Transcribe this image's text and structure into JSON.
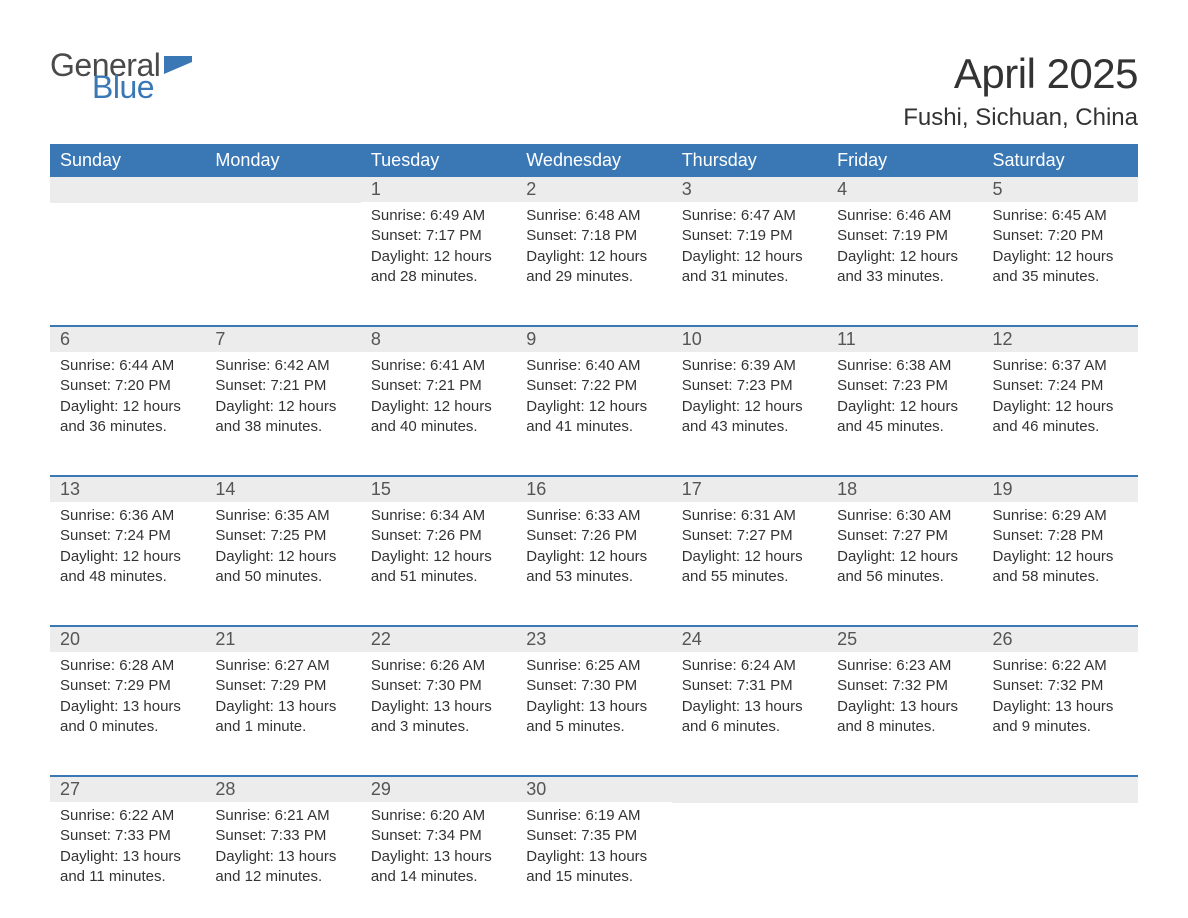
{
  "logo": {
    "text_general": "General",
    "text_blue": "Blue"
  },
  "title": {
    "month": "April 2025",
    "location": "Fushi, Sichuan, China"
  },
  "colors": {
    "header_bg": "#3a78b5",
    "header_text": "#ffffff",
    "daynum_bg": "#ececec",
    "week_border": "#3a78b5",
    "body_text": "#333333",
    "logo_gray": "#4a4a4a",
    "logo_blue": "#3a78b5",
    "page_bg": "#ffffff"
  },
  "weekdays": [
    "Sunday",
    "Monday",
    "Tuesday",
    "Wednesday",
    "Thursday",
    "Friday",
    "Saturday"
  ],
  "weeks": [
    [
      {
        "n": "",
        "sunrise": "",
        "sunset": "",
        "daylight": ""
      },
      {
        "n": "",
        "sunrise": "",
        "sunset": "",
        "daylight": ""
      },
      {
        "n": "1",
        "sunrise": "Sunrise: 6:49 AM",
        "sunset": "Sunset: 7:17 PM",
        "daylight": "Daylight: 12 hours and 28 minutes."
      },
      {
        "n": "2",
        "sunrise": "Sunrise: 6:48 AM",
        "sunset": "Sunset: 7:18 PM",
        "daylight": "Daylight: 12 hours and 29 minutes."
      },
      {
        "n": "3",
        "sunrise": "Sunrise: 6:47 AM",
        "sunset": "Sunset: 7:19 PM",
        "daylight": "Daylight: 12 hours and 31 minutes."
      },
      {
        "n": "4",
        "sunrise": "Sunrise: 6:46 AM",
        "sunset": "Sunset: 7:19 PM",
        "daylight": "Daylight: 12 hours and 33 minutes."
      },
      {
        "n": "5",
        "sunrise": "Sunrise: 6:45 AM",
        "sunset": "Sunset: 7:20 PM",
        "daylight": "Daylight: 12 hours and 35 minutes."
      }
    ],
    [
      {
        "n": "6",
        "sunrise": "Sunrise: 6:44 AM",
        "sunset": "Sunset: 7:20 PM",
        "daylight": "Daylight: 12 hours and 36 minutes."
      },
      {
        "n": "7",
        "sunrise": "Sunrise: 6:42 AM",
        "sunset": "Sunset: 7:21 PM",
        "daylight": "Daylight: 12 hours and 38 minutes."
      },
      {
        "n": "8",
        "sunrise": "Sunrise: 6:41 AM",
        "sunset": "Sunset: 7:21 PM",
        "daylight": "Daylight: 12 hours and 40 minutes."
      },
      {
        "n": "9",
        "sunrise": "Sunrise: 6:40 AM",
        "sunset": "Sunset: 7:22 PM",
        "daylight": "Daylight: 12 hours and 41 minutes."
      },
      {
        "n": "10",
        "sunrise": "Sunrise: 6:39 AM",
        "sunset": "Sunset: 7:23 PM",
        "daylight": "Daylight: 12 hours and 43 minutes."
      },
      {
        "n": "11",
        "sunrise": "Sunrise: 6:38 AM",
        "sunset": "Sunset: 7:23 PM",
        "daylight": "Daylight: 12 hours and 45 minutes."
      },
      {
        "n": "12",
        "sunrise": "Sunrise: 6:37 AM",
        "sunset": "Sunset: 7:24 PM",
        "daylight": "Daylight: 12 hours and 46 minutes."
      }
    ],
    [
      {
        "n": "13",
        "sunrise": "Sunrise: 6:36 AM",
        "sunset": "Sunset: 7:24 PM",
        "daylight": "Daylight: 12 hours and 48 minutes."
      },
      {
        "n": "14",
        "sunrise": "Sunrise: 6:35 AM",
        "sunset": "Sunset: 7:25 PM",
        "daylight": "Daylight: 12 hours and 50 minutes."
      },
      {
        "n": "15",
        "sunrise": "Sunrise: 6:34 AM",
        "sunset": "Sunset: 7:26 PM",
        "daylight": "Daylight: 12 hours and 51 minutes."
      },
      {
        "n": "16",
        "sunrise": "Sunrise: 6:33 AM",
        "sunset": "Sunset: 7:26 PM",
        "daylight": "Daylight: 12 hours and 53 minutes."
      },
      {
        "n": "17",
        "sunrise": "Sunrise: 6:31 AM",
        "sunset": "Sunset: 7:27 PM",
        "daylight": "Daylight: 12 hours and 55 minutes."
      },
      {
        "n": "18",
        "sunrise": "Sunrise: 6:30 AM",
        "sunset": "Sunset: 7:27 PM",
        "daylight": "Daylight: 12 hours and 56 minutes."
      },
      {
        "n": "19",
        "sunrise": "Sunrise: 6:29 AM",
        "sunset": "Sunset: 7:28 PM",
        "daylight": "Daylight: 12 hours and 58 minutes."
      }
    ],
    [
      {
        "n": "20",
        "sunrise": "Sunrise: 6:28 AM",
        "sunset": "Sunset: 7:29 PM",
        "daylight": "Daylight: 13 hours and 0 minutes."
      },
      {
        "n": "21",
        "sunrise": "Sunrise: 6:27 AM",
        "sunset": "Sunset: 7:29 PM",
        "daylight": "Daylight: 13 hours and 1 minute."
      },
      {
        "n": "22",
        "sunrise": "Sunrise: 6:26 AM",
        "sunset": "Sunset: 7:30 PM",
        "daylight": "Daylight: 13 hours and 3 minutes."
      },
      {
        "n": "23",
        "sunrise": "Sunrise: 6:25 AM",
        "sunset": "Sunset: 7:30 PM",
        "daylight": "Daylight: 13 hours and 5 minutes."
      },
      {
        "n": "24",
        "sunrise": "Sunrise: 6:24 AM",
        "sunset": "Sunset: 7:31 PM",
        "daylight": "Daylight: 13 hours and 6 minutes."
      },
      {
        "n": "25",
        "sunrise": "Sunrise: 6:23 AM",
        "sunset": "Sunset: 7:32 PM",
        "daylight": "Daylight: 13 hours and 8 minutes."
      },
      {
        "n": "26",
        "sunrise": "Sunrise: 6:22 AM",
        "sunset": "Sunset: 7:32 PM",
        "daylight": "Daylight: 13 hours and 9 minutes."
      }
    ],
    [
      {
        "n": "27",
        "sunrise": "Sunrise: 6:22 AM",
        "sunset": "Sunset: 7:33 PM",
        "daylight": "Daylight: 13 hours and 11 minutes."
      },
      {
        "n": "28",
        "sunrise": "Sunrise: 6:21 AM",
        "sunset": "Sunset: 7:33 PM",
        "daylight": "Daylight: 13 hours and 12 minutes."
      },
      {
        "n": "29",
        "sunrise": "Sunrise: 6:20 AM",
        "sunset": "Sunset: 7:34 PM",
        "daylight": "Daylight: 13 hours and 14 minutes."
      },
      {
        "n": "30",
        "sunrise": "Sunrise: 6:19 AM",
        "sunset": "Sunset: 7:35 PM",
        "daylight": "Daylight: 13 hours and 15 minutes."
      },
      {
        "n": "",
        "sunrise": "",
        "sunset": "",
        "daylight": ""
      },
      {
        "n": "",
        "sunrise": "",
        "sunset": "",
        "daylight": ""
      },
      {
        "n": "",
        "sunrise": "",
        "sunset": "",
        "daylight": ""
      }
    ]
  ]
}
